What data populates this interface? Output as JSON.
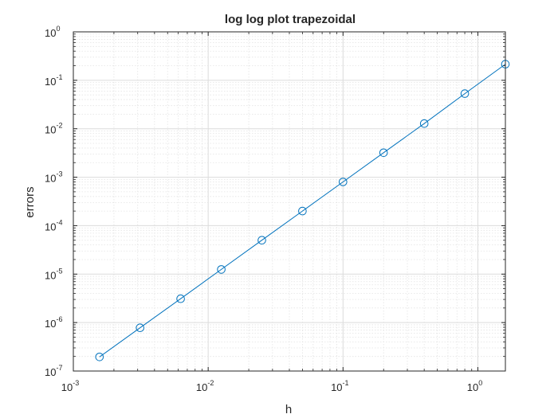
{
  "chart_data": {
    "type": "scatter",
    "title": "log log plot trapezoidal",
    "xlabel": "h",
    "ylabel": "errors",
    "xscale": "log",
    "yscale": "log",
    "xlim": [
      0.001,
      1.6
    ],
    "ylim": [
      1e-07,
      1
    ],
    "grid": "on (major and minor)",
    "marker": "circle",
    "line": "solid",
    "color": "#0072BD",
    "x_ticks": [
      {
        "value": 0.001,
        "base": "10",
        "exp": "-3"
      },
      {
        "value": 0.01,
        "base": "10",
        "exp": "-2"
      },
      {
        "value": 0.1,
        "base": "10",
        "exp": "-1"
      },
      {
        "value": 1,
        "base": "10",
        "exp": "0"
      }
    ],
    "y_ticks": [
      {
        "value": 1e-07,
        "base": "10",
        "exp": "-7"
      },
      {
        "value": 1e-06,
        "base": "10",
        "exp": "-6"
      },
      {
        "value": 1e-05,
        "base": "10",
        "exp": "-5"
      },
      {
        "value": 0.0001,
        "base": "10",
        "exp": "-4"
      },
      {
        "value": 0.001,
        "base": "10",
        "exp": "-3"
      },
      {
        "value": 0.01,
        "base": "10",
        "exp": "-2"
      },
      {
        "value": 0.1,
        "base": "10",
        "exp": "-1"
      },
      {
        "value": 1,
        "base": "10",
        "exp": "0"
      }
    ],
    "x": [
      0.0015625,
      0.003125,
      0.00625,
      0.0125,
      0.025,
      0.05,
      0.1,
      0.2,
      0.4,
      0.8,
      1.6
    ],
    "y": [
      1.95e-07,
      7.8e-07,
      3.1e-06,
      1.25e-05,
      5e-05,
      0.0002,
      0.0008,
      0.0032,
      0.0128,
      0.053,
      0.215
    ]
  }
}
